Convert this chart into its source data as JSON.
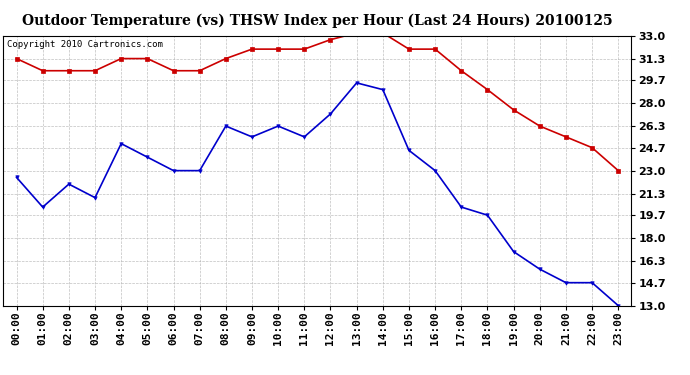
{
  "title": "Outdoor Temperature (vs) THSW Index per Hour (Last 24 Hours) 20100125",
  "copyright": "Copyright 2010 Cartronics.com",
  "hours": [
    "00:00",
    "01:00",
    "02:00",
    "03:00",
    "04:00",
    "05:00",
    "06:00",
    "07:00",
    "08:00",
    "09:00",
    "10:00",
    "11:00",
    "12:00",
    "13:00",
    "14:00",
    "15:00",
    "16:00",
    "17:00",
    "18:00",
    "19:00",
    "20:00",
    "21:00",
    "22:00",
    "23:00"
  ],
  "red_data": [
    31.3,
    30.4,
    30.4,
    30.4,
    31.3,
    31.3,
    30.4,
    30.4,
    31.3,
    32.0,
    32.0,
    32.0,
    32.7,
    33.2,
    33.2,
    32.0,
    32.0,
    30.4,
    29.0,
    27.5,
    26.3,
    25.5,
    24.7,
    23.0
  ],
  "blue_data": [
    22.5,
    20.3,
    22.0,
    21.0,
    25.0,
    24.0,
    23.0,
    23.0,
    26.3,
    25.5,
    26.3,
    25.5,
    27.2,
    29.5,
    29.0,
    24.5,
    23.0,
    20.3,
    19.7,
    17.0,
    15.7,
    14.7,
    14.7,
    13.0
  ],
  "ylim": [
    13.0,
    33.0
  ],
  "yticks": [
    13.0,
    14.7,
    16.3,
    18.0,
    19.7,
    21.3,
    23.0,
    24.7,
    26.3,
    28.0,
    29.7,
    31.3,
    33.0
  ],
  "red_color": "#cc0000",
  "blue_color": "#0000cc",
  "bg_color": "#ffffff",
  "grid_color": "#b0b0b0",
  "title_fontsize": 10,
  "copyright_fontsize": 6.5,
  "tick_fontsize": 8
}
